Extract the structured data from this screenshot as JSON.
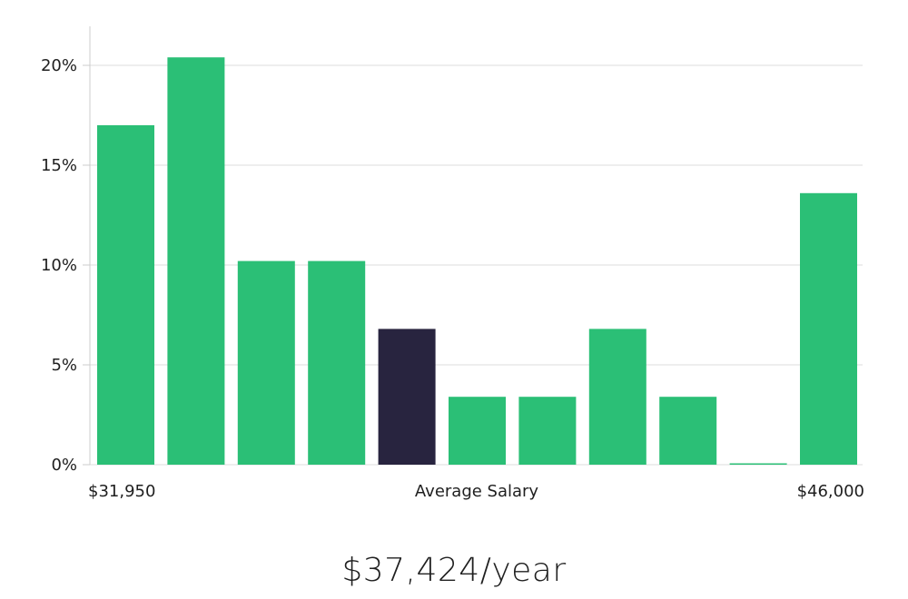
{
  "chart_data": {
    "type": "bar",
    "x_labels": {
      "left": "$31,950",
      "center": "Average Salary",
      "right": "$46,000"
    },
    "y_ticks": [
      "0%",
      "5%",
      "10%",
      "15%",
      "20%"
    ],
    "ylim": [
      0,
      21.5
    ],
    "grid": true,
    "values": [
      17.0,
      20.4,
      10.2,
      10.2,
      6.8,
      3.4,
      3.4,
      6.8,
      3.4,
      0.0,
      13.6
    ],
    "highlight_index": 4,
    "colors": {
      "bar": "#2bbf76",
      "highlight": "#28243f",
      "grid": "#dcdcdc",
      "axis": "#cccccc"
    }
  },
  "summary": {
    "salary_text": "$37,424/year"
  }
}
